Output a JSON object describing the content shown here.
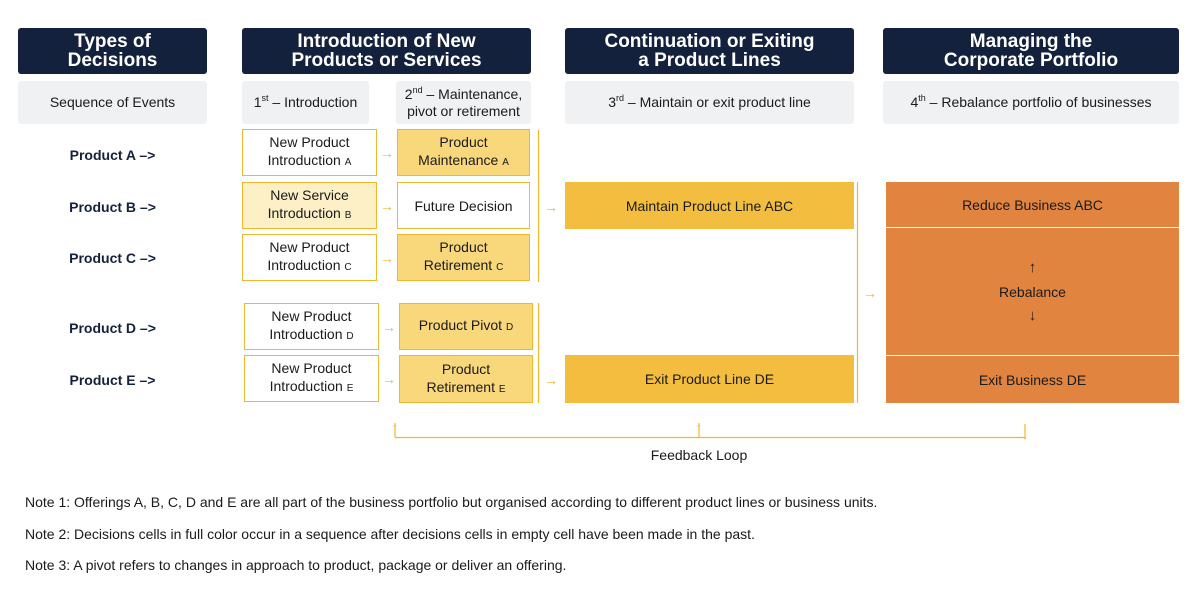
{
  "headers": {
    "types": [
      "Types of",
      "Decisions"
    ],
    "intro": [
      "Introduction of New",
      "Products or Services"
    ],
    "cont": [
      "Continuation or Exiting",
      "a Product Lines"
    ],
    "manage": [
      "Managing the",
      "Corporate Portfolio"
    ]
  },
  "subheaders": {
    "seq": "Sequence of Events",
    "first_num": "1",
    "first_sup": "st",
    "first_text": " – Introduction",
    "second_num": "2",
    "second_sup": "nd",
    "second_text_1": " – Maintenance,",
    "second_text_2": "pivot or retirement",
    "third_num": "3",
    "third_sup": "rd",
    "third_text": " – Maintain or exit product line",
    "fourth_num": "4",
    "fourth_sup": "th",
    "fourth_text": " – Rebalance portfolio of businesses"
  },
  "products": [
    "Product A –>",
    "Product B –>",
    "Product C –>",
    "Product D –>",
    "Product E –>"
  ],
  "rows": [
    {
      "c1": [
        "New Product",
        "Introduction",
        "A"
      ],
      "c2": [
        "Product",
        "Maintenance",
        "A"
      ]
    },
    {
      "c1": [
        "New Service",
        "Introduction",
        "B"
      ],
      "c2": [
        "Future Decision",
        "",
        ""
      ]
    },
    {
      "c1": [
        "New Product",
        "Introduction",
        "C"
      ],
      "c2": [
        "Product",
        "Retirement",
        "C"
      ]
    },
    {
      "c1": [
        "New Product",
        "Introduction",
        "D"
      ],
      "c2": [
        "Product Pivot",
        "",
        "D"
      ]
    },
    {
      "c1": [
        "New Product",
        "Introduction",
        "E"
      ],
      "c2": [
        "Product",
        "Retirement",
        "E"
      ]
    }
  ],
  "lines": {
    "abc": "Maintain Product Line ABC",
    "de": "Exit Product Line DE"
  },
  "portfolio": {
    "reduce": "Reduce Business ABC",
    "rebalance": "Rebalance",
    "exit": "Exit Business DE"
  },
  "arrows": {
    "right": "→",
    "up": "↑",
    "down": "↓"
  },
  "feedback": "Feedback Loop",
  "notes": [
    "Note 1: Offerings A, B, C, D and E are all part of the business portfolio but organised according to different product lines or business units.",
    "Note 2: Decisions cells in full color occur in a sequence after decisions cells in empty cell have been made in the past.",
    "Note 3: A pivot refers to changes in approach to product, package or deliver an offering."
  ],
  "colors": {
    "navy": "#14213d",
    "gold": "#f0b731",
    "full_yellow": "#f3be3f",
    "orange": "#e08440"
  }
}
